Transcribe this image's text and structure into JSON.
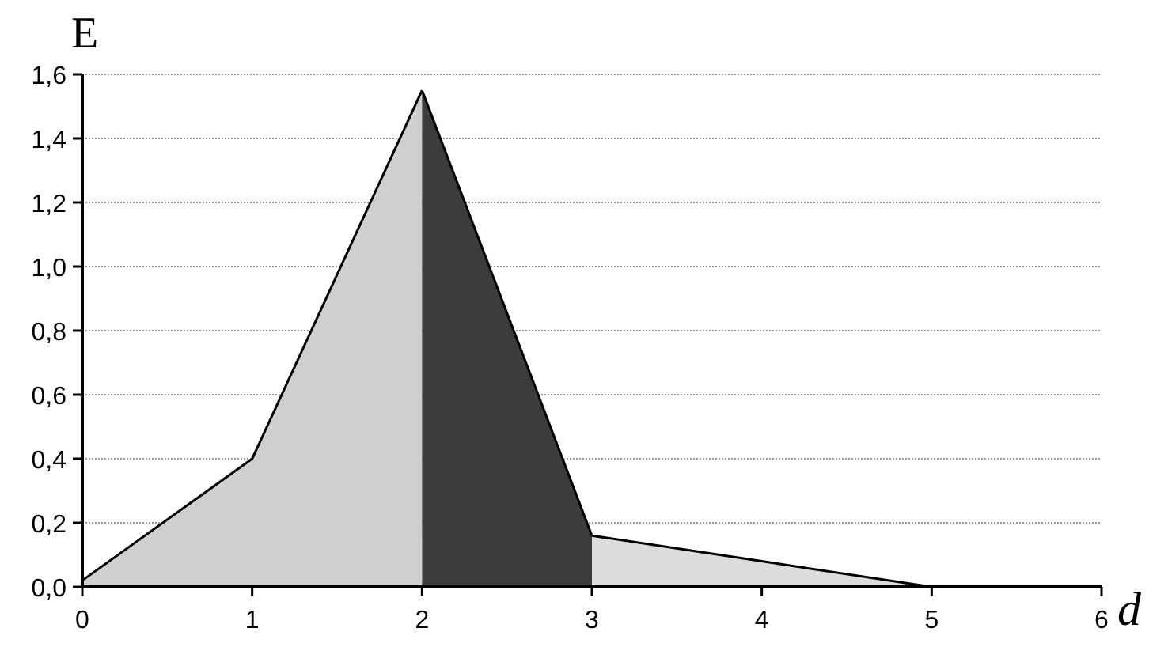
{
  "chart_data": {
    "type": "area",
    "xlabel": "d",
    "ylabel": "E",
    "xlim": [
      0,
      6
    ],
    "xticks": [
      0,
      1,
      2,
      3,
      4,
      5,
      6
    ],
    "ylim": [
      0,
      1.6
    ],
    "yticks": [
      {
        "value": 0,
        "label": "0,0"
      },
      {
        "value": 0.2,
        "label": "0,2"
      },
      {
        "value": 0.4,
        "label": "0,4"
      },
      {
        "value": 0.6,
        "label": "0,6"
      },
      {
        "value": 0.8,
        "label": "0,8"
      },
      {
        "value": 1.0,
        "label": "1,0"
      },
      {
        "value": 1.2,
        "label": "1,2"
      },
      {
        "value": 1.4,
        "label": "1,4"
      },
      {
        "value": 1.6,
        "label": "1,6"
      }
    ],
    "grid": "y",
    "series": [
      {
        "color": "#cfcfcf",
        "x": [
          0,
          1,
          2
        ],
        "values": [
          0.02,
          0.4,
          1.55
        ]
      },
      {
        "color": "#3c3c3c",
        "x": [
          2,
          3
        ],
        "values": [
          1.55,
          0.16
        ]
      },
      {
        "color": "#dcdcdc",
        "x": [
          3,
          4,
          5,
          6
        ],
        "values": [
          0.16,
          0.08,
          0,
          0
        ]
      }
    ]
  }
}
